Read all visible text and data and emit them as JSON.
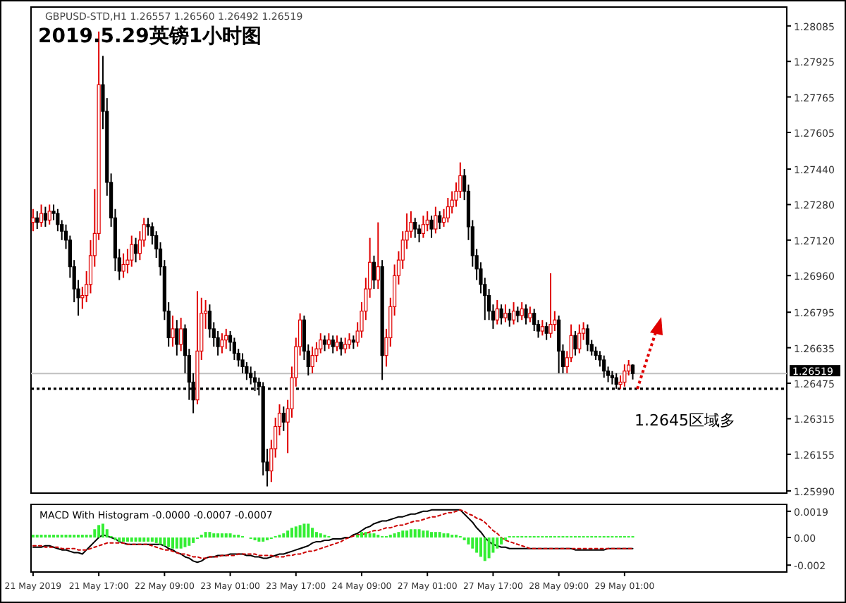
{
  "chart_data": [
    {
      "type": "candlestick",
      "title": "2019.5.29英镑1小时图",
      "subtitle": "GBPUSD-STD,H1 1.26557 1.26560 1.26492 1.26519",
      "categories": [
        null,
        null,
        null,
        null,
        null,
        null,
        null,
        null,
        null,
        null,
        null,
        null,
        null,
        null,
        null,
        null,
        null,
        null,
        null,
        null,
        null,
        null,
        null,
        null,
        null,
        null,
        null,
        null,
        null,
        null,
        null,
        null,
        null,
        null,
        null,
        null,
        null,
        null,
        null,
        null,
        null,
        null,
        null,
        null,
        null,
        null,
        null,
        null,
        null,
        null,
        null,
        null,
        null,
        null,
        null,
        null,
        null,
        null,
        null,
        null,
        null,
        null,
        null,
        null,
        null,
        null,
        null,
        null,
        null,
        null,
        null,
        null,
        null,
        null,
        null,
        null,
        null,
        null,
        null,
        null,
        null,
        null,
        null,
        null,
        null,
        null,
        null,
        null,
        null,
        null,
        null,
        null,
        null,
        null,
        null,
        null,
        null,
        null,
        null,
        null,
        null,
        null,
        null,
        null,
        null,
        null,
        null,
        null,
        null,
        null,
        null,
        null,
        null,
        null,
        null,
        null,
        null,
        null,
        null,
        null,
        null,
        null,
        null,
        null,
        null,
        null,
        null,
        null,
        null,
        null,
        null,
        null,
        null,
        null,
        null,
        null,
        null,
        null,
        null,
        null,
        null,
        null,
        null,
        null,
        null,
        null,
        null,
        null,
        null,
        null,
        null,
        null,
        null,
        null,
        null,
        null,
        null,
        null,
        null,
        null,
        null,
        null,
        null,
        null,
        null,
        null,
        null,
        null,
        null,
        null,
        null,
        null,
        null,
        null,
        null,
        null,
        null,
        null,
        null,
        null,
        null,
        null,
        null,
        null
      ],
      "ohlc": [
        [
          1.272,
          1.2726,
          1.2716,
          1.2722
        ],
        [
          1.2722,
          1.2725,
          1.2717,
          1.272
        ],
        [
          1.272,
          1.2728,
          1.2718,
          1.2724
        ],
        [
          1.2724,
          1.2727,
          1.2718,
          1.2721
        ],
        [
          1.2721,
          1.2728,
          1.2719,
          1.2725
        ],
        [
          1.2725,
          1.2728,
          1.2721,
          1.2724
        ],
        [
          1.2724,
          1.2726,
          1.2716,
          1.2719
        ],
        [
          1.2719,
          1.2721,
          1.2712,
          1.2716
        ],
        [
          1.2716,
          1.2719,
          1.2708,
          1.2712
        ],
        [
          1.2712,
          1.2714,
          1.2695,
          1.27
        ],
        [
          1.27,
          1.2703,
          1.2684,
          1.269
        ],
        [
          1.269,
          1.2694,
          1.2678,
          1.2686
        ],
        [
          1.2686,
          1.2691,
          1.2681,
          1.2687
        ],
        [
          1.2687,
          1.2698,
          1.2684,
          1.2692
        ],
        [
          1.2692,
          1.2712,
          1.2688,
          1.2705
        ],
        [
          1.2705,
          1.2735,
          1.27,
          1.2715
        ],
        [
          1.2715,
          1.2806,
          1.2712,
          1.2782
        ],
        [
          1.2782,
          1.2795,
          1.2762,
          1.277
        ],
        [
          1.277,
          1.2776,
          1.2732,
          1.2738
        ],
        [
          1.2738,
          1.2742,
          1.2718,
          1.2722
        ],
        [
          1.2722,
          1.2726,
          1.2698,
          1.2704
        ],
        [
          1.2704,
          1.2708,
          1.2694,
          1.2698
        ],
        [
          1.2698,
          1.2706,
          1.2695,
          1.2701
        ],
        [
          1.2701,
          1.2708,
          1.2697,
          1.2703
        ],
        [
          1.2703,
          1.2714,
          1.27,
          1.271
        ],
        [
          1.271,
          1.2713,
          1.2702,
          1.2706
        ],
        [
          1.2706,
          1.2716,
          1.2703,
          1.2712
        ],
        [
          1.2712,
          1.2722,
          1.2709,
          1.2719
        ],
        [
          1.2719,
          1.2722,
          1.2714,
          1.2718
        ],
        [
          1.2718,
          1.272,
          1.271,
          1.2714
        ],
        [
          1.2714,
          1.2716,
          1.2704,
          1.2708
        ],
        [
          1.2708,
          1.2711,
          1.2696,
          1.27
        ],
        [
          1.27,
          1.2703,
          1.2676,
          1.268
        ],
        [
          1.268,
          1.2684,
          1.2664,
          1.2668
        ],
        [
          1.2668,
          1.2678,
          1.2664,
          1.2672
        ],
        [
          1.2672,
          1.2676,
          1.266,
          1.2665
        ],
        [
          1.2665,
          1.2677,
          1.2662,
          1.2672
        ],
        [
          1.2672,
          1.2674,
          1.2652,
          1.266
        ],
        [
          1.266,
          1.2663,
          1.264,
          1.2648
        ],
        [
          1.2648,
          1.2652,
          1.2634,
          1.264
        ],
        [
          1.264,
          1.2689,
          1.2638,
          1.2662
        ],
        [
          1.2662,
          1.2686,
          1.2658,
          1.2679
        ],
        [
          1.2679,
          1.2685,
          1.2672,
          1.268
        ],
        [
          1.268,
          1.2683,
          1.2668,
          1.2672
        ],
        [
          1.2672,
          1.2675,
          1.2664,
          1.2668
        ],
        [
          1.2668,
          1.2671,
          1.266,
          1.2664
        ],
        [
          1.2664,
          1.267,
          1.2661,
          1.2667
        ],
        [
          1.2667,
          1.2672,
          1.2663,
          1.2669
        ],
        [
          1.2669,
          1.2671,
          1.2662,
          1.2666
        ],
        [
          1.2666,
          1.2668,
          1.2658,
          1.2661
        ],
        [
          1.2661,
          1.2663,
          1.2655,
          1.2658
        ],
        [
          1.2658,
          1.2661,
          1.2652,
          1.2655
        ],
        [
          1.2655,
          1.2657,
          1.2649,
          1.2652
        ],
        [
          1.2652,
          1.2655,
          1.2647,
          1.265
        ],
        [
          1.265,
          1.2653,
          1.2644,
          1.2648
        ],
        [
          1.2648,
          1.265,
          1.2642,
          1.2646
        ],
        [
          1.2646,
          1.2648,
          1.2606,
          1.2612
        ],
        [
          1.2612,
          1.2618,
          1.2601,
          1.2608
        ],
        [
          1.2608,
          1.2622,
          1.2603,
          1.2618
        ],
        [
          1.2618,
          1.2632,
          1.2614,
          1.2628
        ],
        [
          1.2628,
          1.2638,
          1.2624,
          1.2634
        ],
        [
          1.2634,
          1.2637,
          1.2626,
          1.263
        ],
        [
          1.263,
          1.264,
          1.2616,
          1.2636
        ],
        [
          1.2636,
          1.2655,
          1.2632,
          1.265
        ],
        [
          1.265,
          1.2668,
          1.2646,
          1.2664
        ],
        [
          1.2664,
          1.2679,
          1.266,
          1.2676
        ],
        [
          1.2676,
          1.2678,
          1.2658,
          1.2662
        ],
        [
          1.2662,
          1.2665,
          1.2651,
          1.2655
        ],
        [
          1.2655,
          1.2664,
          1.2652,
          1.266
        ],
        [
          1.266,
          1.2666,
          1.2657,
          1.2663
        ],
        [
          1.2663,
          1.267,
          1.2661,
          1.2667
        ],
        [
          1.2667,
          1.2669,
          1.2662,
          1.2665
        ],
        [
          1.2665,
          1.267,
          1.2663,
          1.2667
        ],
        [
          1.2667,
          1.2669,
          1.2661,
          1.2664
        ],
        [
          1.2664,
          1.2669,
          1.2662,
          1.2666
        ],
        [
          1.2666,
          1.2668,
          1.266,
          1.2663
        ],
        [
          1.2663,
          1.2668,
          1.2661,
          1.2665
        ],
        [
          1.2665,
          1.267,
          1.2663,
          1.2667
        ],
        [
          1.2667,
          1.2669,
          1.2663,
          1.2666
        ],
        [
          1.2666,
          1.2675,
          1.2664,
          1.2671
        ],
        [
          1.2671,
          1.2684,
          1.2668,
          1.268
        ],
        [
          1.268,
          1.2695,
          1.2676,
          1.269
        ],
        [
          1.269,
          1.2713,
          1.2686,
          1.2702
        ],
        [
          1.2702,
          1.2705,
          1.269,
          1.2694
        ],
        [
          1.2694,
          1.272,
          1.269,
          1.27
        ],
        [
          1.27,
          1.2703,
          1.2649,
          1.266
        ],
        [
          1.266,
          1.2672,
          1.2655,
          1.2668
        ],
        [
          1.2668,
          1.2686,
          1.2664,
          1.2682
        ],
        [
          1.2682,
          1.2701,
          1.2678,
          1.2696
        ],
        [
          1.2696,
          1.2707,
          1.2692,
          1.2703
        ],
        [
          1.2703,
          1.2716,
          1.2699,
          1.2712
        ],
        [
          1.2712,
          1.2724,
          1.2708,
          1.2716
        ],
        [
          1.2716,
          1.2725,
          1.2713,
          1.272
        ],
        [
          1.272,
          1.2722,
          1.2713,
          1.2717
        ],
        [
          1.2717,
          1.2719,
          1.2711,
          1.2715
        ],
        [
          1.2715,
          1.2723,
          1.2713,
          1.2719
        ],
        [
          1.2719,
          1.2725,
          1.2716,
          1.2721
        ],
        [
          1.2721,
          1.2723,
          1.2713,
          1.2717
        ],
        [
          1.2717,
          1.2727,
          1.2715,
          1.2723
        ],
        [
          1.2723,
          1.2725,
          1.2717,
          1.272
        ],
        [
          1.272,
          1.2726,
          1.2718,
          1.2722
        ],
        [
          1.2722,
          1.2731,
          1.272,
          1.2727
        ],
        [
          1.2727,
          1.2734,
          1.2724,
          1.273
        ],
        [
          1.273,
          1.2738,
          1.2727,
          1.2734
        ],
        [
          1.2734,
          1.2747,
          1.2731,
          1.2741
        ],
        [
          1.2741,
          1.2744,
          1.273,
          1.2734
        ],
        [
          1.2734,
          1.2737,
          1.2712,
          1.2718
        ],
        [
          1.2718,
          1.2721,
          1.27,
          1.2705
        ],
        [
          1.2705,
          1.2708,
          1.2694,
          1.2699
        ],
        [
          1.2699,
          1.2702,
          1.2688,
          1.2692
        ],
        [
          1.2692,
          1.2695,
          1.2676,
          1.2687
        ],
        [
          1.2687,
          1.269,
          1.2676,
          1.268
        ],
        [
          1.268,
          1.2683,
          1.2672,
          1.2676
        ],
        [
          1.2676,
          1.2685,
          1.2674,
          1.2681
        ],
        [
          1.2681,
          1.2683,
          1.2674,
          1.2677
        ],
        [
          1.2677,
          1.2683,
          1.2675,
          1.2679
        ],
        [
          1.2679,
          1.2681,
          1.2673,
          1.2676
        ],
        [
          1.2676,
          1.2684,
          1.2674,
          1.268
        ],
        [
          1.268,
          1.2682,
          1.2675,
          1.2678
        ],
        [
          1.2678,
          1.2684,
          1.2676,
          1.2681
        ],
        [
          1.2681,
          1.2683,
          1.2674,
          1.2677
        ],
        [
          1.2677,
          1.2682,
          1.2675,
          1.2679
        ],
        [
          1.2679,
          1.2681,
          1.2671,
          1.2674
        ],
        [
          1.2674,
          1.2676,
          1.2668,
          1.2671
        ],
        [
          1.2671,
          1.2676,
          1.2669,
          1.2673
        ],
        [
          1.2673,
          1.2675,
          1.2667,
          1.267
        ],
        [
          1.267,
          1.2697,
          1.2668,
          1.2674
        ],
        [
          1.2674,
          1.268,
          1.2671,
          1.2676
        ],
        [
          1.2676,
          1.2678,
          1.2652,
          1.2662
        ],
        [
          1.2662,
          1.2665,
          1.2652,
          1.2655
        ],
        [
          1.2655,
          1.2662,
          1.2652,
          1.2659
        ],
        [
          1.2659,
          1.2674,
          1.2657,
          1.2669
        ],
        [
          1.2669,
          1.2671,
          1.266,
          1.2663
        ],
        [
          1.2663,
          1.2674,
          1.2661,
          1.267
        ],
        [
          1.267,
          1.2675,
          1.2667,
          1.2672
        ],
        [
          1.2672,
          1.2674,
          1.2662,
          1.2665
        ],
        [
          1.2665,
          1.2667,
          1.266,
          1.2662
        ],
        [
          1.2662,
          1.2664,
          1.2658,
          1.266
        ],
        [
          1.266,
          1.2662,
          1.2655,
          1.2658
        ],
        [
          1.2658,
          1.266,
          1.265,
          1.2653
        ],
        [
          1.2653,
          1.2655,
          1.2648,
          1.2651
        ],
        [
          1.2651,
          1.2653,
          1.2647,
          1.265
        ],
        [
          1.265,
          1.2652,
          1.2645,
          1.2647
        ],
        [
          1.2647,
          1.2651,
          1.2645,
          1.2648
        ],
        [
          1.2648,
          1.2656,
          1.2646,
          1.2653
        ],
        [
          1.2653,
          1.2658,
          1.2651,
          1.26557
        ],
        [
          1.26557,
          1.2656,
          1.26492,
          1.26519
        ],
        null,
        null,
        null,
        null,
        null,
        null,
        null,
        null,
        null,
        null,
        null,
        null,
        null,
        null,
        null,
        null,
        null,
        null,
        null,
        null,
        null,
        null,
        null,
        null,
        null,
        null,
        null,
        null,
        null,
        null,
        null,
        null,
        null,
        null,
        null,
        null,
        null
      ],
      "ylim": [
        1.2598,
        1.2817
      ],
      "yticks": [
        1.28085,
        1.27925,
        1.27765,
        1.27605,
        {
          "value": 1.2744,
          "label": "1.27440"
        },
        {
          "value": 1.2728,
          "label": "1.27280"
        },
        {
          "value": 1.2712,
          "label": "1.27120"
        },
        {
          "value": 1.2696,
          "label": "1.26960"
        },
        1.26795,
        1.26635,
        1.26475,
        1.26315,
        1.26155,
        {
          "value": 1.2599,
          "label": "1.25990"
        }
      ],
      "ref_lines": [
        {
          "axis": "y",
          "value": 1.26519,
          "label": "1.26519",
          "color": "#c0c0c0"
        },
        {
          "axis": "y",
          "value": 1.2645,
          "color": "#000000",
          "line_style": "dotted"
        }
      ],
      "annotations": [
        "1.2645区域多"
      ]
    },
    {
      "type": "line",
      "title": "MACD With Histogram -0.0000 -0.0007 -0.0007",
      "categories": [
        "21 May 2019",
        null,
        null,
        null,
        null,
        null,
        null,
        null,
        null,
        null,
        null,
        null,
        null,
        null,
        null,
        null,
        "21 May 17:00",
        null,
        null,
        null,
        null,
        null,
        null,
        null,
        null,
        null,
        null,
        null,
        null,
        null,
        null,
        null,
        "22 May 09:00",
        null,
        null,
        null,
        null,
        null,
        null,
        null,
        null,
        null,
        null,
        null,
        null,
        null,
        null,
        null,
        "23 May 01:00",
        null,
        null,
        null,
        null,
        null,
        null,
        null,
        null,
        null,
        null,
        null,
        null,
        null,
        null,
        null,
        "23 May 17:00",
        null,
        null,
        null,
        null,
        null,
        null,
        null,
        null,
        null,
        null,
        null,
        null,
        null,
        null,
        null,
        "24 May 09:00",
        null,
        null,
        null,
        null,
        null,
        null,
        null,
        null,
        null,
        null,
        null,
        null,
        null,
        null,
        null,
        "27 May 01:00",
        null,
        null,
        null,
        null,
        null,
        null,
        null,
        null,
        null,
        null,
        null,
        null,
        null,
        null,
        null,
        "27 May 17:00",
        null,
        null,
        null,
        null,
        null,
        null,
        null,
        null,
        null,
        null,
        null,
        null,
        null,
        null,
        null,
        "28 May 09:00",
        null,
        null,
        null,
        null,
        null,
        null,
        null,
        null,
        null,
        null,
        null,
        null,
        null,
        null,
        null,
        "29 May 01:00",
        null,
        null,
        null,
        null,
        null,
        null,
        null,
        null,
        null,
        null,
        null,
        null,
        null,
        null,
        null,
        null,
        null,
        null,
        null,
        null,
        null,
        null,
        null,
        null,
        null,
        null,
        null,
        null,
        null,
        null,
        null,
        null,
        null,
        null,
        null,
        null,
        null,
        null,
        null
      ],
      "ylim": [
        -0.0025,
        0.0024
      ],
      "yticks": [
        0.0019,
        {
          "value": 0,
          "label": "0.00"
        },
        {
          "value": -0.002,
          "label": "-0.002"
        }
      ],
      "series": [
        {
          "type": "bar",
          "color": "#33ee33",
          "values": [
            0.0002,
            0.0002,
            0.0002,
            0.0002,
            0.0002,
            0.0002,
            0.0002,
            0.0002,
            0.0002,
            0.0002,
            0.0002,
            0.0002,
            0.0002,
            0.0002,
            0.0002,
            0.0006,
            0.0009,
            0.001,
            0.0006,
            0.0001,
            -0.0002,
            -0.0003,
            -0.0003,
            -0.0003,
            -0.0003,
            -0.0003,
            -0.0003,
            -0.0003,
            -0.0003,
            -0.0003,
            -0.0004,
            -0.0005,
            -0.0006,
            -0.0007,
            -0.0008,
            -0.0008,
            -0.0008,
            -0.0007,
            -0.0006,
            -0.0004,
            -0.0001,
            0.0002,
            0.0004,
            0.0004,
            0.0003,
            0.0003,
            0.0003,
            0.0003,
            0.0003,
            0.0002,
            0.0002,
            0.0001,
            0,
            -0.0001,
            -0.0002,
            -0.0003,
            -0.0003,
            -0.0002,
            -0.0001,
            0.0001,
            0.0002,
            0.0003,
            0.0005,
            0.0007,
            0.0008,
            0.0009,
            0.001,
            0.001,
            0.0007,
            0.0004,
            0.0003,
            0.0002,
            0.0001,
            0,
            0,
            0,
            0,
            0,
            0,
            0.0002,
            0.0004,
            0.0004,
            0.0003,
            0.0003,
            0.0002,
            0.0001,
            0.0001,
            0.0002,
            0.0003,
            0.0004,
            0.0005,
            0.0005,
            0.0006,
            0.0006,
            0.0006,
            0.0005,
            0.0005,
            0.0004,
            0.0004,
            0.0004,
            0.0003,
            0.0003,
            0.0002,
            0.0002,
            0.0001,
            -0.0002,
            -0.0005,
            -0.0008,
            -0.0011,
            -0.0014,
            -0.0017,
            -0.0015,
            -0.0011,
            -0.0008,
            -0.0005,
            -0.0002,
            0.0001,
            0.0001,
            0.0001,
            0.0001,
            0.0001,
            0.0001,
            0.0001,
            0.0001,
            0.0001,
            0.0001,
            0.0001,
            0.0001,
            0.0001,
            0.0001,
            0.0001,
            0.0001,
            0.0001,
            0.0001,
            0.0001,
            0.0001,
            0.0001,
            0.0001,
            0.0001,
            0.0001,
            0.0001,
            0.0001,
            0.0001,
            0.0001,
            0.0001,
            0.0001,
            0.0001,
            null,
            null,
            null,
            null,
            null,
            null,
            null,
            null,
            null,
            null,
            null,
            null,
            null,
            null,
            null,
            null,
            null,
            null,
            null,
            null,
            null,
            null,
            null,
            null,
            null,
            null,
            null,
            null,
            null,
            null,
            null,
            null,
            null,
            null,
            null,
            null,
            null
          ]
        },
        {
          "type": "line",
          "color": "#000000",
          "values": [
            -0.0007,
            -0.0007,
            -0.0007,
            -0.0006,
            -0.0006,
            -0.0007,
            -0.0008,
            -0.0009,
            -0.0009,
            -0.001,
            -0.0011,
            -0.0011,
            -0.0012,
            -0.0009,
            -0.0006,
            -0.0003,
            0,
            0.0002,
            0.0001,
            0,
            -0.0001,
            -0.0003,
            -0.0004,
            -0.0005,
            -0.0005,
            -0.0005,
            -0.0005,
            -0.0005,
            -0.0005,
            -0.0005,
            -0.0005,
            -0.0005,
            -0.0006,
            -0.0008,
            -0.0009,
            -0.0011,
            -0.0012,
            -0.0014,
            -0.0015,
            -0.0017,
            -0.0018,
            -0.0017,
            -0.0015,
            -0.0014,
            -0.0014,
            -0.0013,
            -0.0013,
            -0.0013,
            -0.0012,
            -0.0012,
            -0.0012,
            -0.0012,
            -0.0013,
            -0.0013,
            -0.0014,
            -0.0014,
            -0.0015,
            -0.0015,
            -0.0014,
            -0.0013,
            -0.0012,
            -0.0012,
            -0.0011,
            -0.001,
            -0.0009,
            -0.0008,
            -0.0007,
            -0.0006,
            -0.0004,
            -0.0003,
            -0.0003,
            -0.0002,
            -0.0002,
            -0.0001,
            -0.0001,
            -0.0001,
            0,
            0,
            0.0002,
            0.0003,
            0.0005,
            0.0007,
            0.0008,
            0.001,
            0.0011,
            0.0012,
            0.0012,
            0.0013,
            0.0014,
            0.0015,
            0.0015,
            0.0016,
            0.0017,
            0.0017,
            0.0018,
            0.0019,
            0.0019,
            0.002,
            0.002,
            0.002,
            0.002,
            0.002,
            0.002,
            0.002,
            0.002,
            0.0017,
            0.0014,
            0.0011,
            0.0007,
            0.0004,
            0,
            -0.0003,
            -0.0005,
            -0.0006,
            -0.0007,
            -0.0007,
            -0.0008,
            -0.0008,
            -0.0008,
            -0.0008,
            -0.0008,
            -0.0008,
            -0.0008,
            -0.0008,
            -0.0008,
            -0.0008,
            -0.0008,
            -0.0008,
            -0.0008,
            -0.0008,
            -0.0008,
            -0.0008,
            -0.0009,
            -0.0009,
            -0.0009,
            -0.0009,
            -0.0009,
            -0.0009,
            -0.0009,
            -0.0009,
            -0.0008,
            -0.0008,
            -0.0008,
            -0.0008,
            -0.0008,
            -0.0008,
            -0.0008,
            null,
            null,
            null,
            null,
            null,
            null,
            null,
            null,
            null,
            null,
            null,
            null,
            null,
            null,
            null,
            null,
            null,
            null,
            null,
            null,
            null,
            null,
            null,
            null,
            null,
            null,
            null,
            null,
            null,
            null,
            null,
            null,
            null,
            null,
            null,
            null,
            null
          ]
        },
        {
          "type": "line",
          "color": "#cc0000",
          "line_style": "dotted",
          "values": [
            -0.0006,
            -0.0006,
            -0.0006,
            -0.0007,
            -0.0007,
            -0.0007,
            -0.0007,
            -0.0008,
            -0.0008,
            -0.0008,
            -0.0008,
            -0.0009,
            -0.0009,
            -0.0009,
            -0.0008,
            -0.0007,
            -0.0006,
            -0.0005,
            -0.0004,
            -0.0004,
            -0.0004,
            -0.0004,
            -0.0004,
            -0.0005,
            -0.0005,
            -0.0005,
            -0.0005,
            -0.0005,
            -0.0005,
            -0.0006,
            -0.0007,
            -0.0008,
            -0.0009,
            -0.0009,
            -0.001,
            -0.0011,
            -0.0012,
            -0.0012,
            -0.0013,
            -0.0014,
            -0.0014,
            -0.0015,
            -0.0015,
            -0.0014,
            -0.0014,
            -0.0014,
            -0.0013,
            -0.0013,
            -0.0013,
            -0.0013,
            -0.0012,
            -0.0012,
            -0.0012,
            -0.0012,
            -0.0012,
            -0.0013,
            -0.0013,
            -0.0013,
            -0.0013,
            -0.0014,
            -0.0014,
            -0.0014,
            -0.0013,
            -0.0013,
            -0.0012,
            -0.0012,
            -0.0011,
            -0.001,
            -0.001,
            -0.0009,
            -0.0008,
            -0.0007,
            -0.0006,
            -0.0005,
            -0.0004,
            -0.0003,
            -0.0001,
            0,
            0.0001,
            0.0002,
            0.0002,
            0.0003,
            0.0004,
            0.0005,
            0.0005,
            0.0006,
            0.0007,
            0.0007,
            0.0008,
            0.0009,
            0.0009,
            0.001,
            0.0011,
            0.0012,
            0.0012,
            0.0013,
            0.0014,
            0.0015,
            0.0015,
            0.0016,
            0.0017,
            0.0018,
            0.0018,
            0.0019,
            0.002,
            0.0019,
            0.0017,
            0.0016,
            0.0014,
            0.0013,
            0.0011,
            0.0008,
            0.0005,
            0.0003,
            0,
            -0.0002,
            -0.0003,
            -0.0004,
            -0.0005,
            -0.0006,
            -0.0007,
            -0.0008,
            -0.0008,
            -0.0008,
            -0.0008,
            -0.0008,
            -0.0008,
            -0.0008,
            -0.0008,
            -0.0008,
            -0.0008,
            -0.0008,
            -0.0008,
            -0.0008,
            -0.0008,
            -0.0008,
            -0.0008,
            -0.0008,
            -0.0008,
            -0.0008,
            -0.0008,
            -0.0008,
            -0.0008,
            -0.0008,
            -0.0008,
            -0.0008,
            -0.0008,
            null,
            null,
            null,
            null,
            null,
            null,
            null,
            null,
            null,
            null,
            null,
            null,
            null,
            null,
            null,
            null,
            null,
            null,
            null,
            null,
            null,
            null,
            null,
            null,
            null,
            null,
            null,
            null,
            null,
            null,
            null,
            null,
            null,
            null,
            null,
            null,
            null
          ]
        }
      ]
    }
  ]
}
